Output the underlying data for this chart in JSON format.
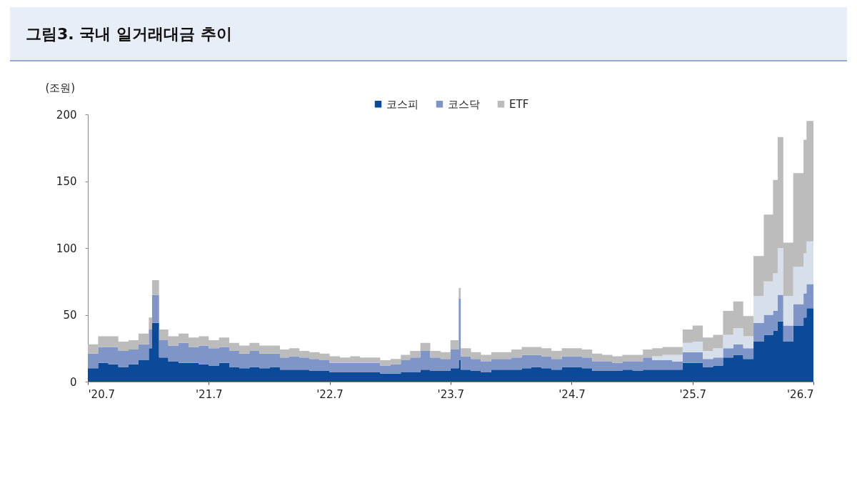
{
  "chart_data": {
    "type": "area",
    "stacked": true,
    "title": "그림3. 국내 일거래대금 추이",
    "ylabel": "(조원)",
    "legend": "top",
    "grid": false,
    "x": [
      "2020-07",
      "2020-08",
      "2020-09",
      "2020-10",
      "2020-11",
      "2020-12",
      "2021-01",
      "2021-01-11",
      "2021-02",
      "2021-03",
      "2021-04",
      "2021-05",
      "2021-06",
      "2021-07",
      "2021-08",
      "2021-09",
      "2021-10",
      "2021-11",
      "2021-12",
      "2022-01",
      "2022-02",
      "2022-03",
      "2022-04",
      "2022-05",
      "2022-06",
      "2022-07",
      "2022-08",
      "2022-09",
      "2022-10",
      "2022-11",
      "2022-12",
      "2023-01",
      "2023-02",
      "2023-03",
      "2023-04",
      "2023-05",
      "2023-06",
      "2023-07",
      "2023-07-26",
      "2023-08",
      "2023-09",
      "2023-10",
      "2023-11",
      "2023-12",
      "2024-01",
      "2024-02",
      "2024-03",
      "2024-04",
      "2024-05",
      "2024-06",
      "2024-07",
      "2024-08",
      "2024-09",
      "2024-10",
      "2024-11",
      "2024-12",
      "2025-01",
      "2025-02",
      "2025-03",
      "2025-04",
      "2025-05",
      "2025-06",
      "2025-07",
      "2025-08",
      "2025-09",
      "2025-10",
      "2025-11",
      "2025-12",
      "2026-01",
      "2026-02",
      "2026-03",
      "2026-03-15",
      "2026-04",
      "2026-05",
      "2026-06",
      "2026-06-10",
      "2026-07"
    ],
    "series": [
      {
        "name": "코스피",
        "color": "#0b4a98",
        "values": [
          10,
          14,
          13,
          11,
          13,
          16,
          25,
          44,
          18,
          15,
          14,
          14,
          13,
          12,
          14,
          11,
          10,
          11,
          10,
          11,
          9,
          9,
          9,
          8,
          8,
          7,
          7,
          7,
          7,
          7,
          6,
          6,
          7,
          7,
          9,
          8,
          8,
          10,
          16,
          9,
          8,
          7,
          9,
          9,
          9,
          10,
          11,
          10,
          9,
          11,
          11,
          10,
          8,
          8,
          8,
          9,
          8,
          9,
          9,
          9,
          9,
          14,
          14,
          11,
          12,
          18,
          20,
          17,
          30,
          35,
          38,
          45,
          30,
          42,
          48,
          55,
          42
        ]
      },
      {
        "name": "코스닥",
        "color": "#7f95c8",
        "values": [
          11,
          12,
          13,
          12,
          11,
          12,
          14,
          21,
          13,
          12,
          15,
          12,
          14,
          13,
          12,
          12,
          11,
          12,
          11,
          10,
          9,
          10,
          9,
          9,
          8,
          7,
          7,
          7,
          7,
          7,
          6,
          7,
          9,
          11,
          14,
          10,
          9,
          14,
          46,
          10,
          9,
          8,
          8,
          8,
          9,
          10,
          9,
          9,
          8,
          8,
          8,
          8,
          7,
          7,
          6,
          6,
          7,
          9,
          7,
          7,
          6,
          8,
          8,
          6,
          6,
          7,
          8,
          8,
          14,
          15,
          15,
          20,
          12,
          16,
          18,
          18,
          12
        ]
      },
      {
        "color": "#d6dfea",
        "values": [
          0,
          0,
          0,
          0,
          0,
          0,
          0,
          0,
          0,
          0,
          0,
          0,
          0,
          0,
          0,
          0,
          0,
          0,
          0,
          0,
          0,
          0,
          0,
          0,
          0,
          0,
          0,
          0,
          0,
          0,
          0,
          0,
          0,
          0,
          0,
          0,
          0,
          0,
          0,
          0,
          0,
          0,
          0,
          0,
          0,
          0,
          0,
          0,
          0,
          0,
          0,
          0,
          0,
          0,
          0,
          0,
          0,
          0,
          3,
          4,
          5,
          7,
          8,
          6,
          7,
          10,
          12,
          9,
          20,
          25,
          28,
          35,
          22,
          28,
          30,
          32,
          22
        ]
      },
      {
        "name": "ETF",
        "color": "#bcbcbc",
        "values": [
          7,
          8,
          8,
          7,
          7,
          8,
          9,
          11,
          8,
          7,
          7,
          7,
          7,
          6,
          7,
          6,
          6,
          6,
          6,
          6,
          6,
          6,
          5,
          5,
          5,
          5,
          4,
          5,
          4,
          4,
          4,
          4,
          4,
          5,
          6,
          5,
          5,
          7,
          8,
          6,
          5,
          5,
          5,
          5,
          6,
          6,
          6,
          6,
          6,
          6,
          6,
          6,
          6,
          5,
          5,
          5,
          5,
          6,
          6,
          6,
          6,
          10,
          12,
          10,
          10,
          18,
          20,
          15,
          30,
          50,
          70,
          83,
          40,
          70,
          85,
          90,
          70
        ]
      }
    ],
    "xlim": [
      "2020-07",
      "2026-07"
    ],
    "xticks": [
      {
        "value": "2020-07",
        "label": "'20.7"
      },
      {
        "value": "2021-07",
        "label": "'21.7"
      },
      {
        "value": "2022-07",
        "label": "'22.7"
      },
      {
        "value": "2023-07",
        "label": "'23.7"
      },
      {
        "value": "2024-07",
        "label": "'24.7"
      },
      {
        "value": "2025-07",
        "label": "'25.7"
      },
      {
        "value": "2026-07",
        "label": "'26.7"
      }
    ],
    "ylim": [
      0,
      200
    ],
    "yticks": [
      0,
      50,
      100,
      150,
      200
    ]
  }
}
